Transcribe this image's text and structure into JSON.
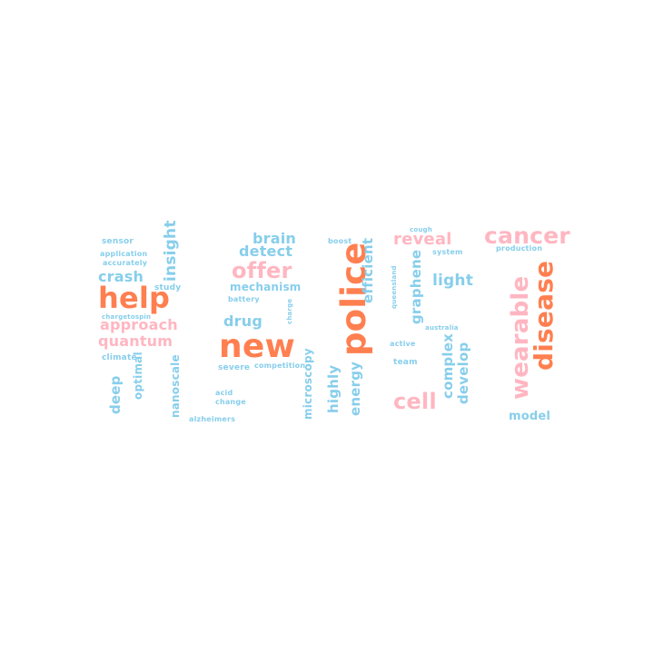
{
  "colors": {
    "blue": "#87CEEB",
    "pink": "#FFB6C1",
    "coral": "#FF7F50",
    "background": "#FFFFFF"
  },
  "words": [
    {
      "text": "help",
      "color": "coral"
    },
    {
      "text": "new",
      "color": "coral"
    },
    {
      "text": "police",
      "color": "coral"
    },
    {
      "text": "disease",
      "color": "coral"
    },
    {
      "text": "wearable",
      "color": "pink"
    },
    {
      "text": "cancer",
      "color": "pink"
    },
    {
      "text": "cell",
      "color": "pink"
    },
    {
      "text": "offer",
      "color": "pink"
    },
    {
      "text": "quantum",
      "color": "pink"
    },
    {
      "text": "approach",
      "color": "pink"
    },
    {
      "text": "reveal",
      "color": "pink"
    },
    {
      "text": "crash",
      "color": "blue"
    },
    {
      "text": "insight",
      "color": "blue"
    },
    {
      "text": "brain",
      "color": "blue"
    },
    {
      "text": "detect",
      "color": "blue"
    },
    {
      "text": "mechanism",
      "color": "blue"
    },
    {
      "text": "drug",
      "color": "blue"
    },
    {
      "text": "light",
      "color": "blue"
    },
    {
      "text": "graphene",
      "color": "blue"
    },
    {
      "text": "efficient",
      "color": "blue"
    },
    {
      "text": "complex",
      "color": "blue"
    },
    {
      "text": "develop",
      "color": "blue"
    },
    {
      "text": "energy",
      "color": "blue"
    },
    {
      "text": "highly",
      "color": "blue"
    },
    {
      "text": "microscopy",
      "color": "blue"
    },
    {
      "text": "deep",
      "color": "blue"
    },
    {
      "text": "optimal",
      "color": "blue"
    },
    {
      "text": "nanoscale",
      "color": "blue"
    },
    {
      "text": "model",
      "color": "blue"
    },
    {
      "text": "sensor",
      "color": "blue"
    },
    {
      "text": "application",
      "color": "blue"
    },
    {
      "text": "accurately",
      "color": "blue"
    },
    {
      "text": "study",
      "color": "blue"
    },
    {
      "text": "chargetospin",
      "color": "blue"
    },
    {
      "text": "climate",
      "color": "blue"
    },
    {
      "text": "battery",
      "color": "blue"
    },
    {
      "text": "charge",
      "color": "blue"
    },
    {
      "text": "severe",
      "color": "blue"
    },
    {
      "text": "competition",
      "color": "blue"
    },
    {
      "text": "acid",
      "color": "blue"
    },
    {
      "text": "change",
      "color": "blue"
    },
    {
      "text": "alzheimers",
      "color": "blue"
    },
    {
      "text": "boost",
      "color": "blue"
    },
    {
      "text": "cough",
      "color": "blue"
    },
    {
      "text": "system",
      "color": "blue"
    },
    {
      "text": "production",
      "color": "blue"
    },
    {
      "text": "queensland",
      "color": "blue"
    },
    {
      "text": "australia",
      "color": "blue"
    },
    {
      "text": "active",
      "color": "blue"
    },
    {
      "text": "team",
      "color": "blue"
    }
  ]
}
